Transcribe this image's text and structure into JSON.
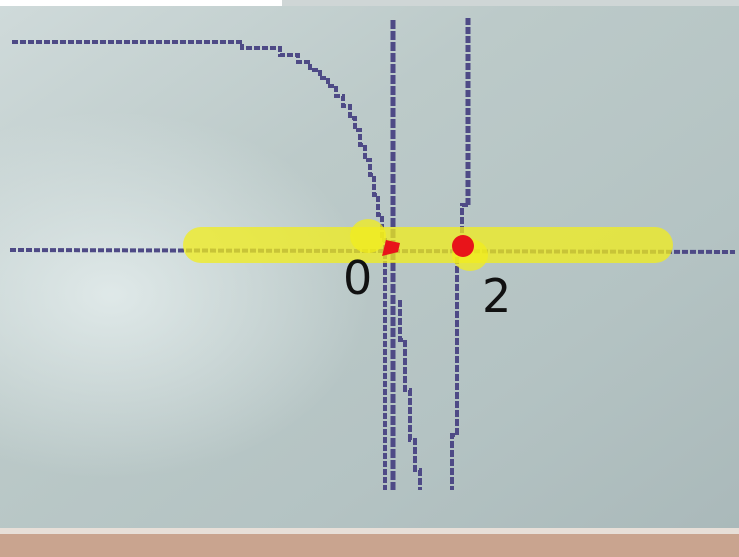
{
  "annotations": {
    "first_label": "0",
    "second_label": "2"
  }
}
